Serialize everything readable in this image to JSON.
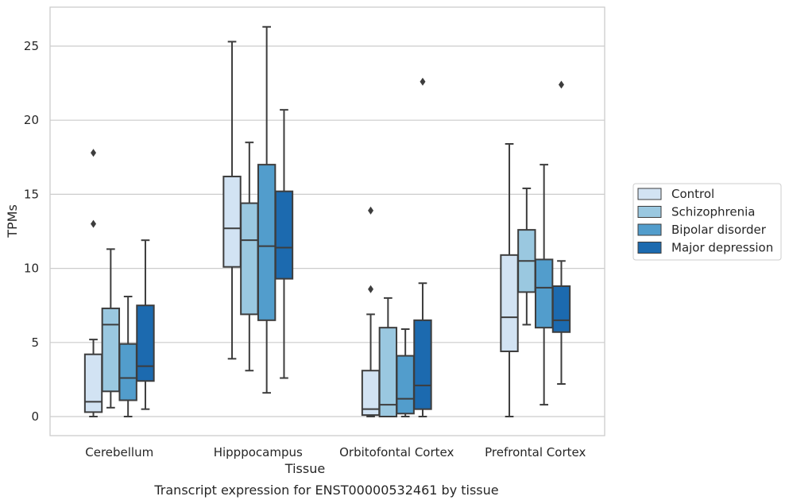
{
  "caption": "Transcript expression for ENST00000532461 by tissue",
  "chart_data": {
    "type": "box",
    "title": "",
    "xlabel": "Tissue",
    "ylabel": "TPMs",
    "ylim": [
      -1.2,
      27.5
    ],
    "yticks": [
      0,
      5,
      10,
      15,
      20,
      25
    ],
    "grid": "horizontal",
    "legend_position": "right",
    "categories": [
      "Cerebellum",
      "Hipppocampus",
      "Orbitofontal Cortex",
      "Prefrontal Cortex"
    ],
    "series": [
      {
        "name": "Control",
        "color": "#d2e3f3",
        "boxes": [
          {
            "whislo": 0.0,
            "q1": 0.3,
            "med": 1.0,
            "q3": 4.2,
            "whishi": 5.2,
            "fliers": [
              13.0,
              17.8
            ]
          },
          {
            "whislo": 3.9,
            "q1": 10.1,
            "med": 12.7,
            "q3": 16.2,
            "whishi": 25.3,
            "fliers": []
          },
          {
            "whislo": 0.0,
            "q1": 0.1,
            "med": 0.5,
            "q3": 3.1,
            "whishi": 6.9,
            "fliers": [
              8.6,
              13.9
            ]
          },
          {
            "whislo": 0.0,
            "q1": 4.4,
            "med": 6.7,
            "q3": 10.9,
            "whishi": 18.4,
            "fliers": []
          }
        ]
      },
      {
        "name": "Schizophrenia",
        "color": "#9ac8e0",
        "boxes": [
          {
            "whislo": 0.6,
            "q1": 1.7,
            "med": 6.2,
            "q3": 7.3,
            "whishi": 11.3,
            "fliers": []
          },
          {
            "whislo": 3.1,
            "q1": 6.9,
            "med": 11.9,
            "q3": 14.4,
            "whishi": 18.5,
            "fliers": []
          },
          {
            "whislo": 0.0,
            "q1": 0.0,
            "med": 0.8,
            "q3": 6.0,
            "whishi": 8.0,
            "fliers": []
          },
          {
            "whislo": 6.2,
            "q1": 8.4,
            "med": 10.5,
            "q3": 12.6,
            "whishi": 15.4,
            "fliers": []
          }
        ]
      },
      {
        "name": "Bipolar disorder",
        "color": "#529dcc",
        "boxes": [
          {
            "whislo": 0.0,
            "q1": 1.1,
            "med": 2.6,
            "q3": 4.9,
            "whishi": 8.1,
            "fliers": []
          },
          {
            "whislo": 1.6,
            "q1": 6.5,
            "med": 11.5,
            "q3": 17.0,
            "whishi": 26.3,
            "fliers": []
          },
          {
            "whislo": 0.0,
            "q1": 0.2,
            "med": 1.2,
            "q3": 4.1,
            "whishi": 5.9,
            "fliers": []
          },
          {
            "whislo": 0.8,
            "q1": 6.0,
            "med": 8.7,
            "q3": 10.6,
            "whishi": 17.0,
            "fliers": []
          }
        ]
      },
      {
        "name": "Major depression",
        "color": "#1c6aaf",
        "boxes": [
          {
            "whislo": 0.5,
            "q1": 2.4,
            "med": 3.4,
            "q3": 7.5,
            "whishi": 11.9,
            "fliers": []
          },
          {
            "whislo": 2.6,
            "q1": 9.3,
            "med": 11.4,
            "q3": 15.2,
            "whishi": 20.7,
            "fliers": []
          },
          {
            "whislo": 0.0,
            "q1": 0.5,
            "med": 2.1,
            "q3": 6.5,
            "whishi": 9.0,
            "fliers": [
              22.6
            ]
          },
          {
            "whislo": 2.2,
            "q1": 5.7,
            "med": 6.5,
            "q3": 8.8,
            "whishi": 10.5,
            "fliers": [
              22.4
            ]
          }
        ]
      }
    ]
  }
}
